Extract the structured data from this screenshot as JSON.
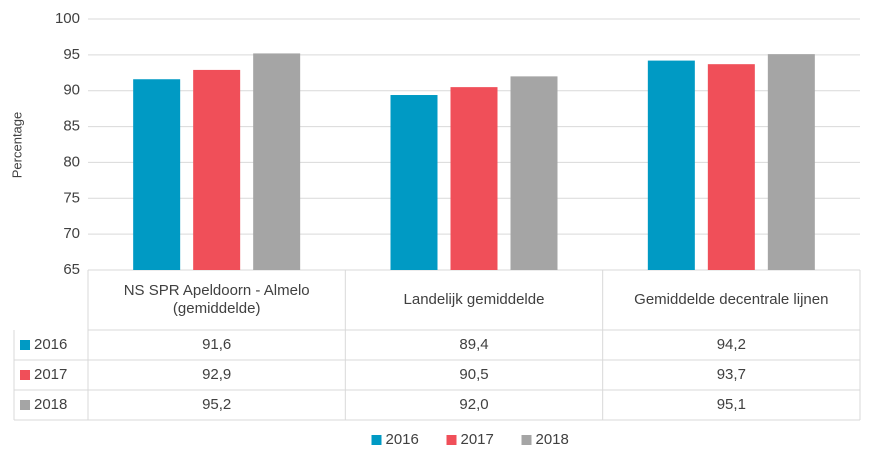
{
  "chart_data": {
    "type": "bar",
    "y_label": "Percentage",
    "categories": [
      "NS SPR Apeldoorn - Almelo (gemiddelde)",
      "Landelijk gemiddelde",
      "Gemiddelde decentrale lijnen"
    ],
    "series": [
      {
        "name": "2016",
        "color": "#009ac4",
        "values": [
          91.6,
          89.4,
          94.2
        ],
        "value_labels": [
          "91,6",
          "89,4",
          "94,2"
        ]
      },
      {
        "name": "2017",
        "color": "#f04f59",
        "values": [
          92.9,
          90.5,
          93.7
        ],
        "value_labels": [
          "92,9",
          "90,5",
          "93,7"
        ]
      },
      {
        "name": "2018",
        "color": "#a5a5a5",
        "values": [
          95.2,
          92.0,
          95.1
        ],
        "value_labels": [
          "95,2",
          "92,0",
          "95,1"
        ]
      }
    ],
    "ylim": [
      65,
      100
    ],
    "yticks": [
      65,
      70,
      75,
      80,
      85,
      90,
      95,
      100
    ],
    "grid": true,
    "legend": "bottom"
  }
}
